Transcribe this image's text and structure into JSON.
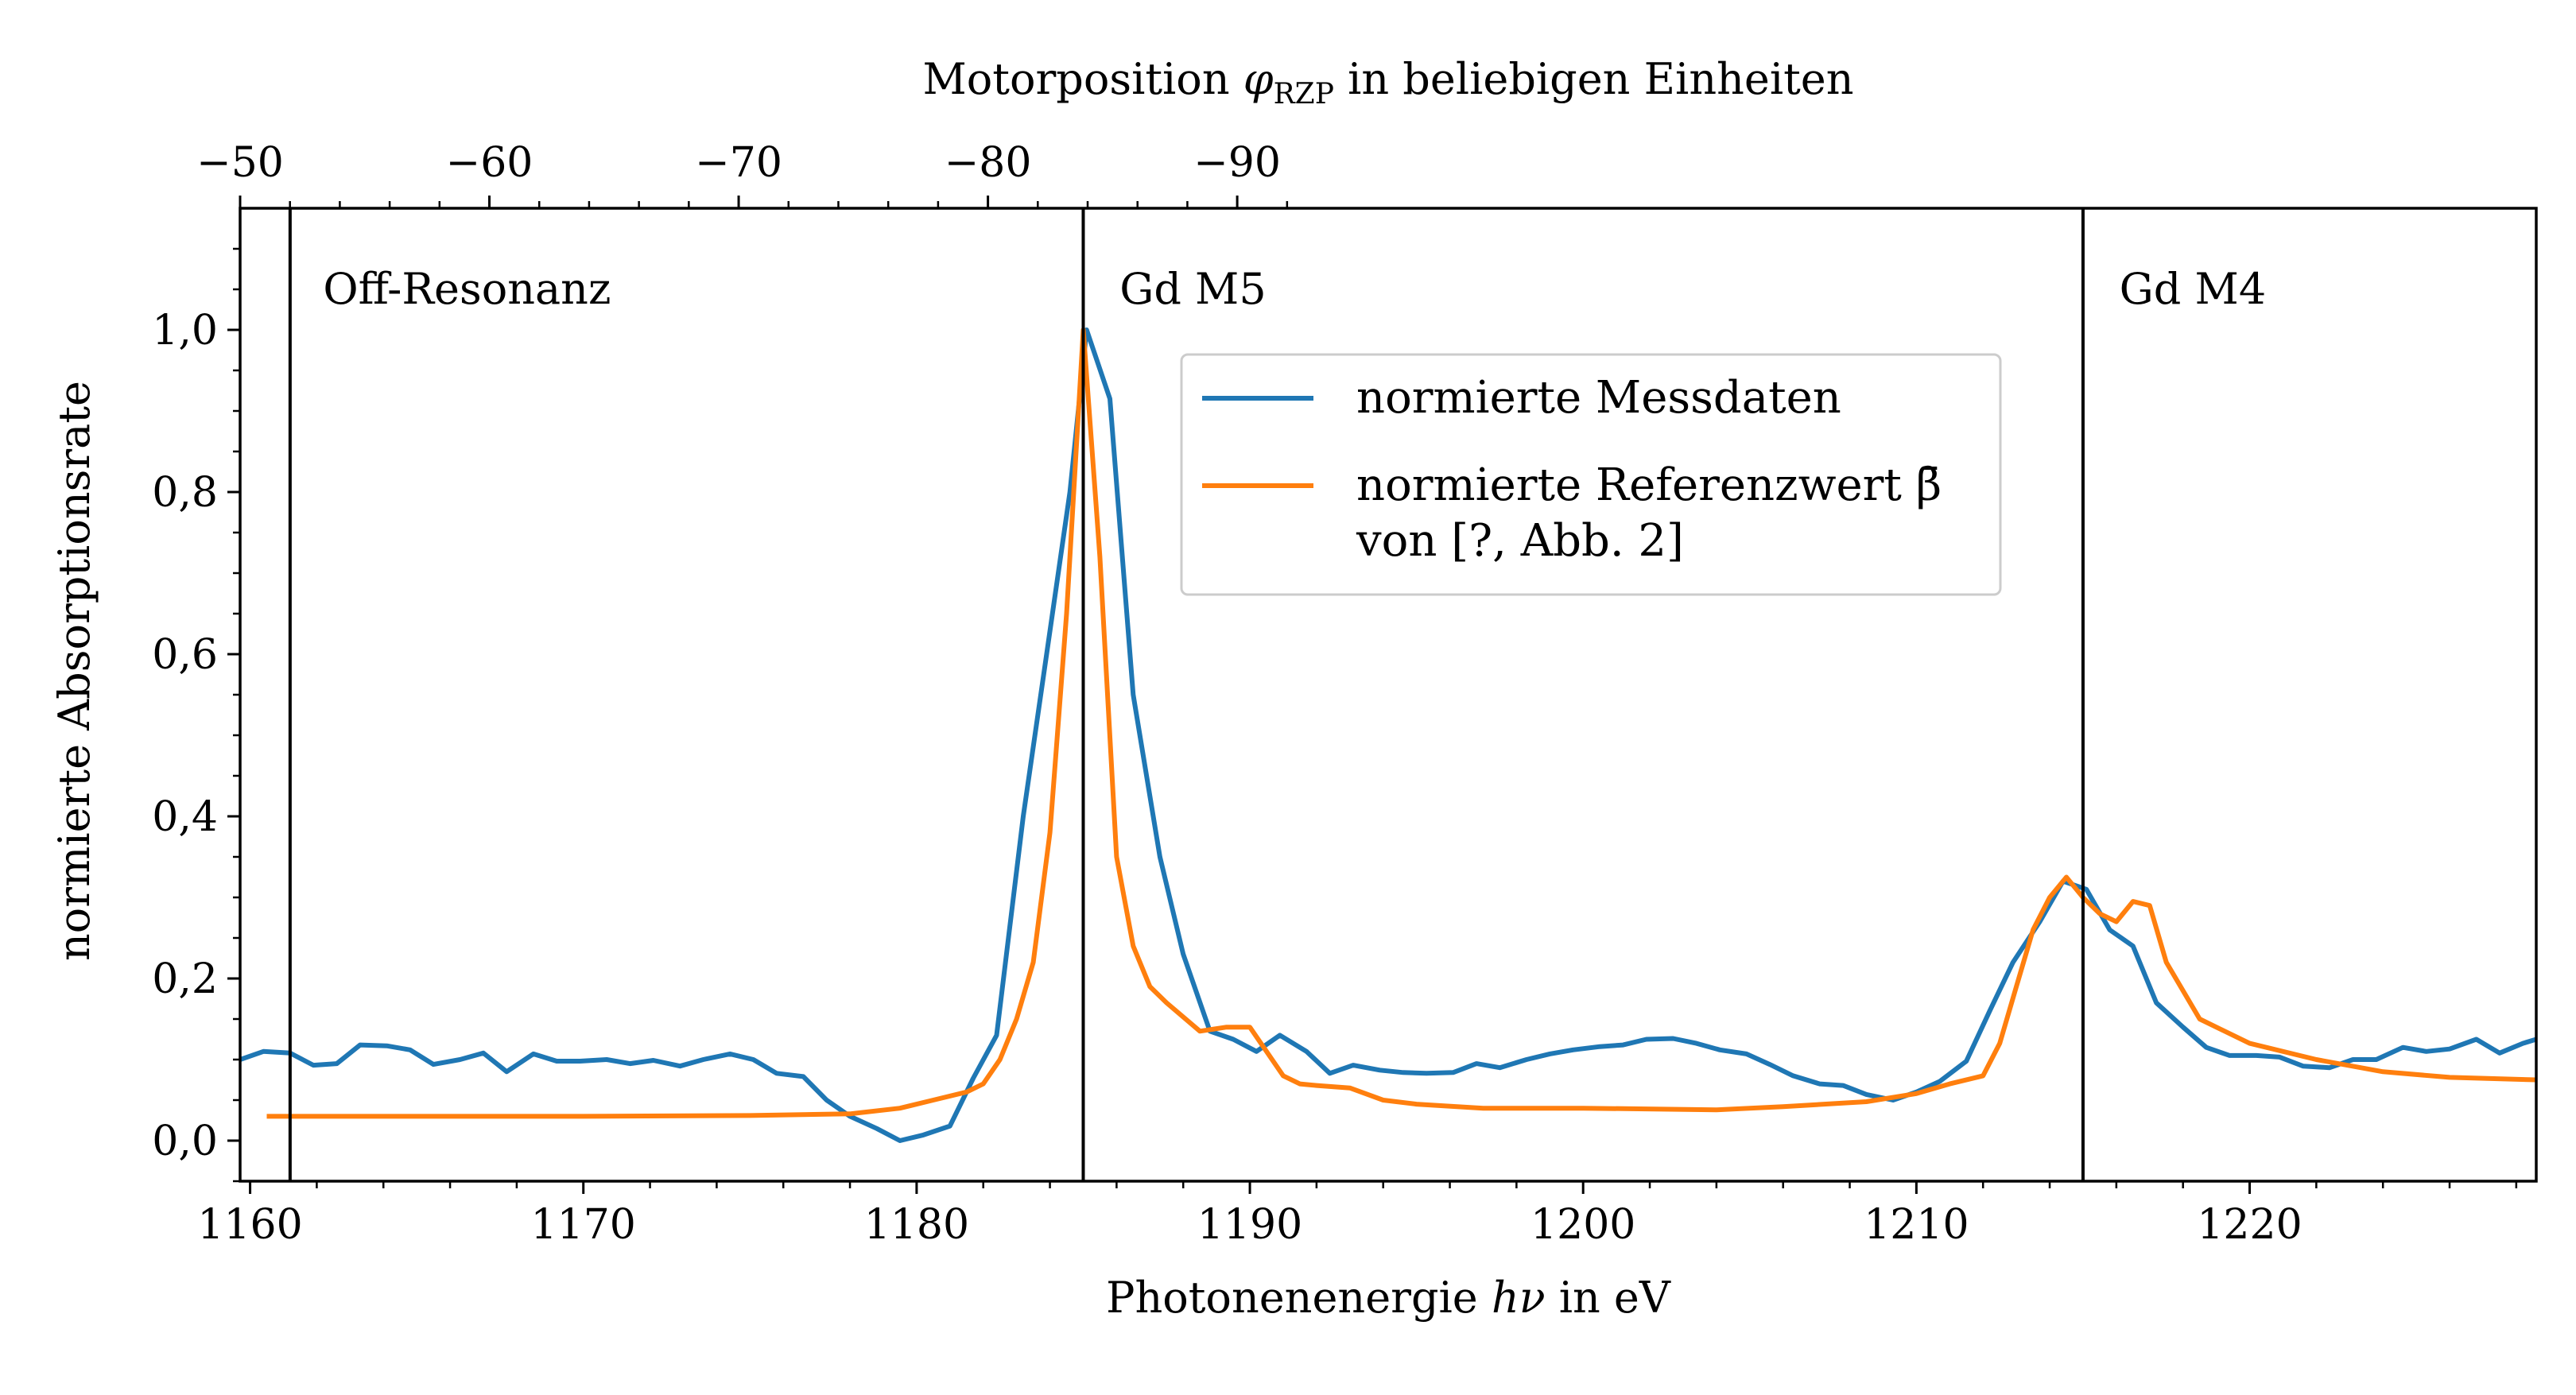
{
  "chart_data": {
    "type": "line",
    "xlabel": "Photonenenergie hν in eV",
    "ylabel": "normierte Absorptionsrate",
    "xlabel_top": "Motorposition φRZP in beliebigen Einheiten",
    "xlim": [
      1159.7,
      1228.6
    ],
    "ylim": [
      -0.05,
      1.15
    ],
    "xticks": [
      1160,
      1170,
      1180,
      1190,
      1200,
      1210,
      1220
    ],
    "xtick_labels": [
      "1160",
      "1170",
      "1180",
      "1190",
      "1200",
      "1210",
      "1220"
    ],
    "yticks": [
      0.0,
      0.2,
      0.4,
      0.6,
      0.8,
      1.0
    ],
    "ytick_labels": [
      "0,0",
      "0,2",
      "0,4",
      "0,6",
      "0,8",
      "1,0"
    ],
    "top_ticks": [
      -50,
      -60,
      -70,
      -80,
      -90
    ],
    "top_tick_labels": [
      "−50",
      "−60",
      "−70",
      "−80",
      "−90"
    ],
    "top_axis_mapping": {
      "x_at_minus50": 1159.7,
      "x_per_unit": -0.748
    },
    "vertical_lines": [
      1161.2,
      1185.0,
      1215.0
    ],
    "annotations": [
      {
        "text": "Off-Resonanz",
        "x": 1162.0,
        "y": 1.05
      },
      {
        "text": "Gd M5",
        "x": 1185.9,
        "y": 1.05
      },
      {
        "text": "Gd M4",
        "x": 1215.9,
        "y": 1.05
      }
    ],
    "legend": {
      "placement": "upper-center",
      "entries": [
        {
          "label_lines": [
            "normierte Messdaten"
          ]
        },
        {
          "label_lines": [
            "normierte Referenzwert β̄",
            "von [?, Abb. 2]"
          ]
        }
      ]
    },
    "series": [
      {
        "name": "normierte Messdaten",
        "color": "#1f77b4",
        "x": [
          1159.7,
          1160.4,
          1161.2,
          1161.9,
          1162.6,
          1163.3,
          1164.1,
          1164.8,
          1165.5,
          1166.3,
          1167.0,
          1167.7,
          1168.5,
          1169.2,
          1169.9,
          1170.7,
          1171.4,
          1172.1,
          1172.9,
          1173.6,
          1174.4,
          1175.1,
          1175.8,
          1176.6,
          1177.3,
          1178.0,
          1178.8,
          1179.5,
          1180.2,
          1181.0,
          1181.7,
          1182.4,
          1183.2,
          1183.9,
          1184.6,
          1185.1,
          1185.8,
          1186.5,
          1187.3,
          1188.0,
          1188.8,
          1189.5,
          1190.2,
          1190.9,
          1191.7,
          1192.4,
          1193.1,
          1193.9,
          1194.6,
          1195.3,
          1196.1,
          1196.8,
          1197.5,
          1198.3,
          1199.0,
          1199.7,
          1200.5,
          1201.2,
          1201.9,
          1202.7,
          1203.4,
          1204.1,
          1204.9,
          1205.6,
          1206.3,
          1207.1,
          1207.8,
          1208.5,
          1209.3,
          1210.0,
          1210.7,
          1211.5,
          1212.2,
          1212.9,
          1213.7,
          1214.4,
          1215.1,
          1215.8,
          1216.5,
          1217.2,
          1218.0,
          1218.7,
          1219.4,
          1220.2,
          1220.9,
          1221.6,
          1222.4,
          1223.1,
          1223.8,
          1224.6,
          1225.3,
          1226.0,
          1226.8,
          1227.5,
          1228.2,
          1228.6
        ],
        "y": [
          0.1,
          0.11,
          0.108,
          0.093,
          0.095,
          0.118,
          0.117,
          0.112,
          0.094,
          0.1,
          0.108,
          0.085,
          0.107,
          0.098,
          0.098,
          0.1,
          0.095,
          0.099,
          0.092,
          0.1,
          0.107,
          0.1,
          0.083,
          0.079,
          0.05,
          0.03,
          0.015,
          0.0,
          0.007,
          0.018,
          0.077,
          0.13,
          0.4,
          0.6,
          0.8,
          1.0,
          0.915,
          0.55,
          0.35,
          0.23,
          0.135,
          0.125,
          0.11,
          0.13,
          0.11,
          0.083,
          0.093,
          0.087,
          0.084,
          0.083,
          0.084,
          0.095,
          0.09,
          0.1,
          0.107,
          0.112,
          0.116,
          0.118,
          0.125,
          0.126,
          0.12,
          0.112,
          0.107,
          0.094,
          0.08,
          0.07,
          0.068,
          0.057,
          0.05,
          0.06,
          0.073,
          0.098,
          0.16,
          0.22,
          0.27,
          0.32,
          0.31,
          0.26,
          0.24,
          0.17,
          0.14,
          0.115,
          0.105,
          0.105,
          0.103,
          0.092,
          0.09,
          0.1,
          0.1,
          0.115,
          0.11,
          0.113,
          0.125,
          0.108,
          0.12,
          0.125
        ]
      },
      {
        "name": "normierte Referenzwert β̄ von [?, Abb. 2]",
        "color": "#ff7f0e",
        "x": [
          1160.5,
          1165.0,
          1170.0,
          1175.0,
          1178.0,
          1179.5,
          1180.5,
          1181.5,
          1182.0,
          1182.5,
          1183.0,
          1183.5,
          1184.0,
          1184.5,
          1185.0,
          1185.5,
          1186.0,
          1186.5,
          1187.0,
          1187.5,
          1188.5,
          1189.3,
          1190.0,
          1190.5,
          1191.0,
          1191.5,
          1192.0,
          1193.0,
          1194.0,
          1195.0,
          1197.0,
          1200.0,
          1204.0,
          1206.0,
          1208.5,
          1210.0,
          1211.0,
          1212.0,
          1212.5,
          1213.0,
          1213.5,
          1214.0,
          1214.5,
          1215.0,
          1215.5,
          1216.0,
          1216.5,
          1217.0,
          1217.5,
          1218.5,
          1220.0,
          1222.0,
          1224.0,
          1226.0,
          1228.6
        ],
        "y": [
          0.03,
          0.03,
          0.03,
          0.031,
          0.033,
          0.04,
          0.05,
          0.06,
          0.07,
          0.1,
          0.15,
          0.22,
          0.38,
          0.65,
          1.0,
          0.72,
          0.35,
          0.24,
          0.19,
          0.17,
          0.135,
          0.14,
          0.14,
          0.11,
          0.08,
          0.07,
          0.068,
          0.065,
          0.05,
          0.045,
          0.04,
          0.04,
          0.038,
          0.042,
          0.048,
          0.058,
          0.07,
          0.08,
          0.12,
          0.19,
          0.26,
          0.3,
          0.325,
          0.3,
          0.28,
          0.27,
          0.295,
          0.29,
          0.22,
          0.15,
          0.12,
          0.1,
          0.085,
          0.078,
          0.075
        ]
      }
    ]
  }
}
